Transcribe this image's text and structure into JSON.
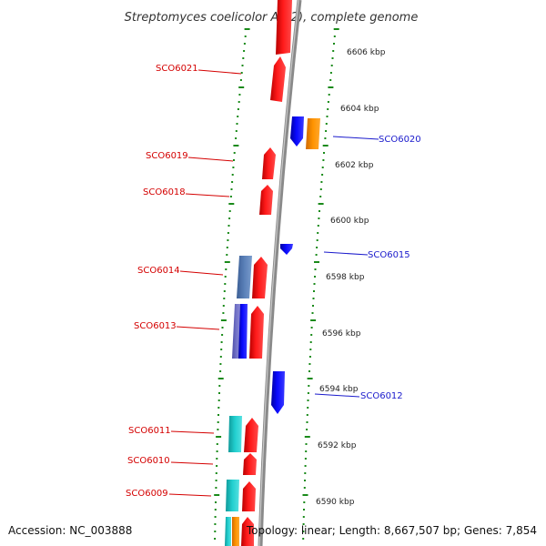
{
  "title": "Streptomyces coelicolor A3(2), complete genome",
  "accession": "Accession: NC_003888",
  "topology_info": "Topology: linear; Length: 8,667,507 bp; Genes: 7,854",
  "scale_labels": [
    "6606 kbp",
    "6604 kbp",
    "6602 kbp",
    "6600 kbp",
    "6598 kbp",
    "6596 kbp",
    "6594 kbp",
    "6592 kbp",
    "6590 kbp"
  ],
  "forward_gene_labels": [
    "SCO6021",
    "SCO6019",
    "SCO6018",
    "SCO6014",
    "SCO6013",
    "SCO6011",
    "SCO6010",
    "SCO6009"
  ],
  "reverse_gene_labels": [
    "SCO6020",
    "SCO6015",
    "SCO6012"
  ],
  "colors": {
    "forward_gene": "#ff0000",
    "reverse_gene": "#0000ff",
    "orange_feature": "#ff8c00",
    "cyan_feature": "#20c8c8",
    "steelblue_feature": "#5a80b8",
    "slateblue_feature": "#7070c8",
    "backbone": "#888888",
    "tick": "#1a8a1a"
  }
}
